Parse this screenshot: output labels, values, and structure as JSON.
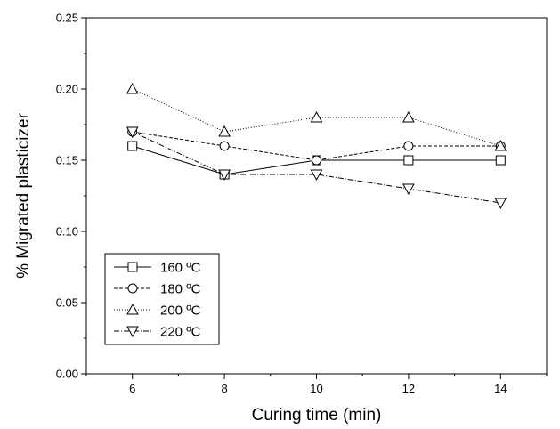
{
  "chart_data": {
    "type": "line",
    "title": "",
    "xlabel": "Curing time (min)",
    "ylabel": "% Migrated plasticizer",
    "xlim": [
      5,
      15
    ],
    "ylim": [
      0,
      0.25
    ],
    "x_ticks": [
      "6",
      "8",
      "10",
      "12",
      "14"
    ],
    "y_ticks": [
      "0.00",
      "0.05",
      "0.10",
      "0.15",
      "0.20",
      "0.25"
    ],
    "x": [
      6,
      8,
      10,
      12,
      14
    ],
    "grid": false,
    "legend_position": "bottom-left",
    "series": [
      {
        "name": "160 ºC",
        "marker": "square",
        "dash": "solid",
        "values": [
          0.16,
          0.14,
          0.15,
          0.15,
          0.15
        ]
      },
      {
        "name": "180 ºC",
        "marker": "circle",
        "dash": "dashed",
        "values": [
          0.17,
          0.16,
          0.15,
          0.16,
          0.16
        ]
      },
      {
        "name": "200 ºC",
        "marker": "triangle-up",
        "dash": "dotted",
        "values": [
          0.2,
          0.17,
          0.18,
          0.18,
          0.16
        ]
      },
      {
        "name": "220 ºC",
        "marker": "triangle-down",
        "dash": "dash-dot",
        "values": [
          0.17,
          0.14,
          0.14,
          0.13,
          0.12
        ]
      }
    ]
  }
}
